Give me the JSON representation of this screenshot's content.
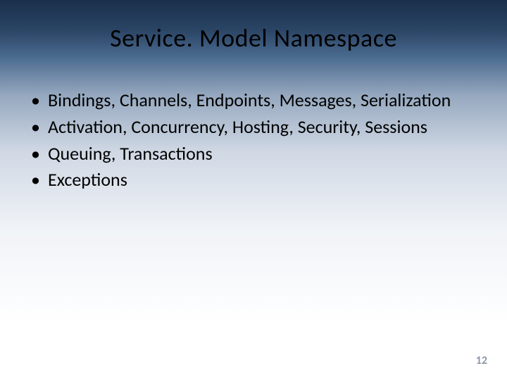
{
  "slide": {
    "title": "Service. Model Namespace",
    "bullets": [
      "Bindings, Channels, Endpoints, Messages, Serialization",
      "Activation, Concurrency, Hosting, Security, Sessions",
      "Queuing, Transactions",
      "Exceptions"
    ],
    "page_number": "12",
    "background_gradient": {
      "top": "#1a2f4a",
      "mid": "#95a8bf",
      "bottom": "#ffffff"
    },
    "title_fontsize": 36,
    "body_fontsize": 26,
    "text_color": "#000000",
    "page_number_color": "#8a97a8"
  }
}
